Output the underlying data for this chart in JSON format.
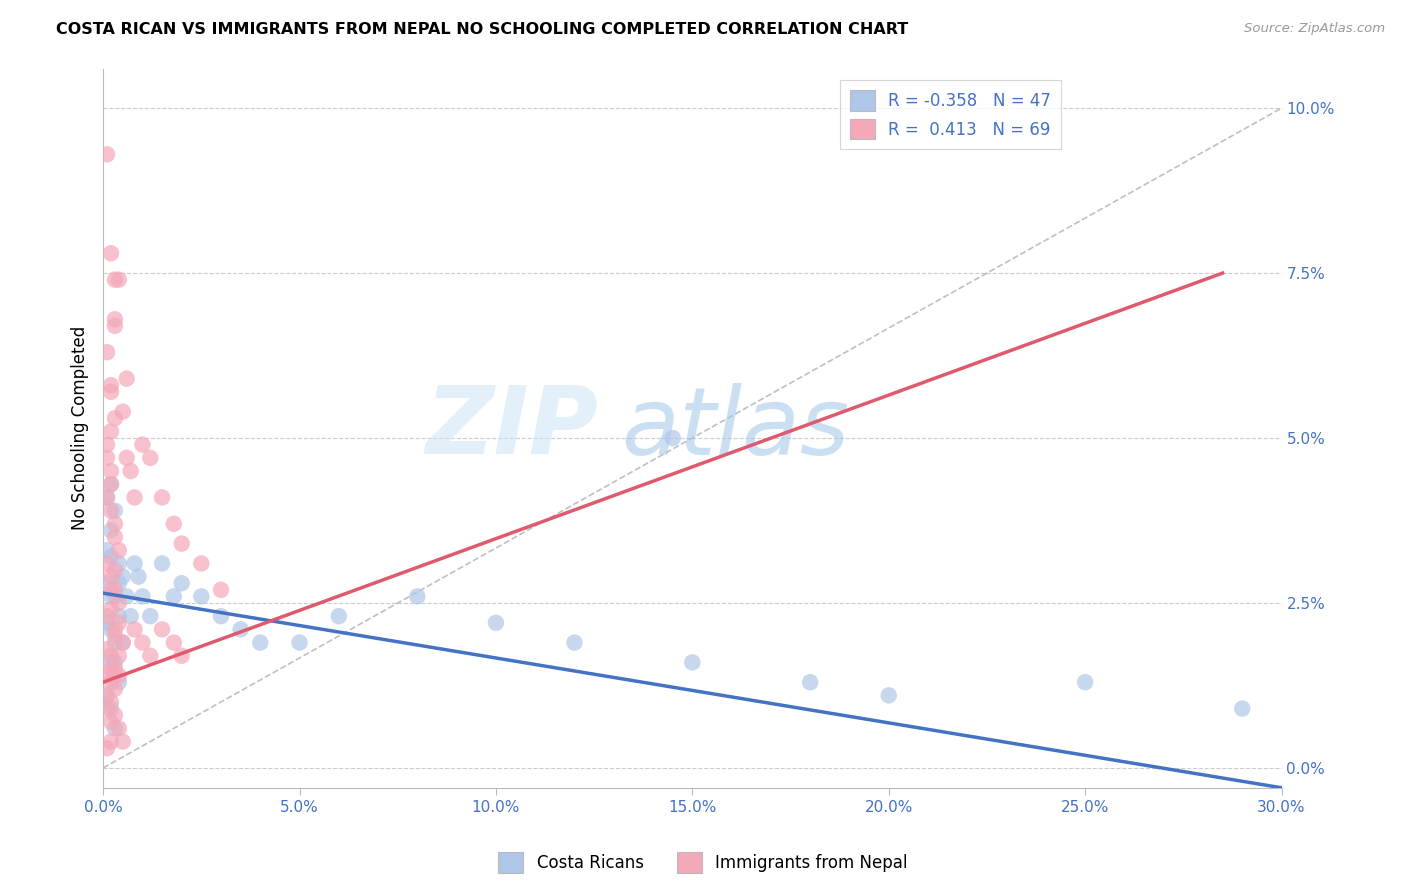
{
  "title": "COSTA RICAN VS IMMIGRANTS FROM NEPAL NO SCHOOLING COMPLETED CORRELATION CHART",
  "source": "Source: ZipAtlas.com",
  "xlabel": "",
  "ylabel": "No Schooling Completed",
  "xlim": [
    0.0,
    0.3
  ],
  "ylim": [
    -0.003,
    0.106
  ],
  "xticks": [
    0.0,
    0.05,
    0.1,
    0.15,
    0.2,
    0.25,
    0.3
  ],
  "xticklabels": [
    "0.0%",
    "5.0%",
    "10.0%",
    "15.0%",
    "20.0%",
    "25.0%",
    "30.0%"
  ],
  "yticks_right": [
    0.0,
    0.025,
    0.05,
    0.075,
    0.1
  ],
  "yticks_right_labels": [
    "0.0%",
    "2.5%",
    "5.0%",
    "7.5%",
    "10.0%"
  ],
  "grid_color": "#cccccc",
  "background_color": "#ffffff",
  "blue_color": "#aec6e8",
  "pink_color": "#f4a8b8",
  "blue_line_color": "#4472c4",
  "pink_line_color": "#e05a6e",
  "ref_line_color": "#c0c0c0",
  "label_color": "#4472c4",
  "R_blue": -0.358,
  "N_blue": 47,
  "R_pink": 0.413,
  "N_pink": 69,
  "legend_label_blue": "Costa Ricans",
  "legend_label_pink": "Immigrants from Nepal",
  "watermark_zip": "ZIP",
  "watermark_atlas": "atlas",
  "blue_scatter": [
    [
      0.001,
      0.028
    ],
    [
      0.002,
      0.026
    ],
    [
      0.002,
      0.032
    ],
    [
      0.001,
      0.022
    ],
    [
      0.003,
      0.019
    ],
    [
      0.004,
      0.028
    ],
    [
      0.003,
      0.016
    ],
    [
      0.002,
      0.021
    ],
    [
      0.001,
      0.033
    ],
    [
      0.002,
      0.036
    ],
    [
      0.003,
      0.039
    ],
    [
      0.004,
      0.031
    ],
    [
      0.005,
      0.029
    ],
    [
      0.001,
      0.041
    ],
    [
      0.002,
      0.043
    ],
    [
      0.003,
      0.026
    ],
    [
      0.004,
      0.023
    ],
    [
      0.002,
      0.016
    ],
    [
      0.001,
      0.011
    ],
    [
      0.002,
      0.009
    ],
    [
      0.003,
      0.006
    ],
    [
      0.004,
      0.013
    ],
    [
      0.005,
      0.019
    ],
    [
      0.006,
      0.026
    ],
    [
      0.007,
      0.023
    ],
    [
      0.008,
      0.031
    ],
    [
      0.009,
      0.029
    ],
    [
      0.01,
      0.026
    ],
    [
      0.015,
      0.031
    ],
    [
      0.02,
      0.028
    ],
    [
      0.012,
      0.023
    ],
    [
      0.018,
      0.026
    ],
    [
      0.025,
      0.026
    ],
    [
      0.03,
      0.023
    ],
    [
      0.035,
      0.021
    ],
    [
      0.04,
      0.019
    ],
    [
      0.05,
      0.019
    ],
    [
      0.06,
      0.023
    ],
    [
      0.08,
      0.026
    ],
    [
      0.1,
      0.022
    ],
    [
      0.12,
      0.019
    ],
    [
      0.15,
      0.016
    ],
    [
      0.18,
      0.013
    ],
    [
      0.2,
      0.011
    ],
    [
      0.25,
      0.013
    ],
    [
      0.29,
      0.009
    ],
    [
      0.145,
      0.05
    ]
  ],
  "pink_scatter": [
    [
      0.001,
      0.093
    ],
    [
      0.002,
      0.078
    ],
    [
      0.003,
      0.074
    ],
    [
      0.003,
      0.068
    ],
    [
      0.001,
      0.063
    ],
    [
      0.002,
      0.058
    ],
    [
      0.003,
      0.053
    ],
    [
      0.002,
      0.051
    ],
    [
      0.001,
      0.047
    ],
    [
      0.002,
      0.045
    ],
    [
      0.002,
      0.043
    ],
    [
      0.001,
      0.041
    ],
    [
      0.002,
      0.039
    ],
    [
      0.003,
      0.037
    ],
    [
      0.003,
      0.035
    ],
    [
      0.004,
      0.033
    ],
    [
      0.001,
      0.031
    ],
    [
      0.002,
      0.029
    ],
    [
      0.003,
      0.03
    ],
    [
      0.002,
      0.027
    ],
    [
      0.003,
      0.027
    ],
    [
      0.004,
      0.025
    ],
    [
      0.001,
      0.023
    ],
    [
      0.002,
      0.024
    ],
    [
      0.003,
      0.021
    ],
    [
      0.004,
      0.022
    ],
    [
      0.005,
      0.019
    ],
    [
      0.003,
      0.02
    ],
    [
      0.002,
      0.017
    ],
    [
      0.001,
      0.018
    ],
    [
      0.004,
      0.017
    ],
    [
      0.003,
      0.015
    ],
    [
      0.002,
      0.015
    ],
    [
      0.001,
      0.014
    ],
    [
      0.003,
      0.014
    ],
    [
      0.004,
      0.014
    ],
    [
      0.002,
      0.013
    ],
    [
      0.001,
      0.011
    ],
    [
      0.003,
      0.012
    ],
    [
      0.002,
      0.01
    ],
    [
      0.001,
      0.009
    ],
    [
      0.002,
      0.007
    ],
    [
      0.003,
      0.008
    ],
    [
      0.004,
      0.006
    ],
    [
      0.005,
      0.004
    ],
    [
      0.002,
      0.004
    ],
    [
      0.001,
      0.003
    ],
    [
      0.006,
      0.047
    ],
    [
      0.007,
      0.045
    ],
    [
      0.008,
      0.041
    ],
    [
      0.01,
      0.049
    ],
    [
      0.012,
      0.047
    ],
    [
      0.015,
      0.041
    ],
    [
      0.018,
      0.037
    ],
    [
      0.02,
      0.034
    ],
    [
      0.025,
      0.031
    ],
    [
      0.03,
      0.027
    ],
    [
      0.008,
      0.021
    ],
    [
      0.01,
      0.019
    ],
    [
      0.012,
      0.017
    ],
    [
      0.015,
      0.021
    ],
    [
      0.018,
      0.019
    ],
    [
      0.02,
      0.017
    ],
    [
      0.005,
      0.054
    ],
    [
      0.006,
      0.059
    ],
    [
      0.003,
      0.067
    ],
    [
      0.004,
      0.074
    ],
    [
      0.002,
      0.057
    ],
    [
      0.001,
      0.049
    ]
  ],
  "blue_line_x": [
    0.0,
    0.3
  ],
  "blue_line_y": [
    0.0265,
    -0.003
  ],
  "pink_line_x": [
    0.0,
    0.285
  ],
  "pink_line_y": [
    0.013,
    0.075
  ],
  "ref_line_x": [
    0.0,
    0.3
  ],
  "ref_line_y": [
    0.0,
    0.1
  ]
}
